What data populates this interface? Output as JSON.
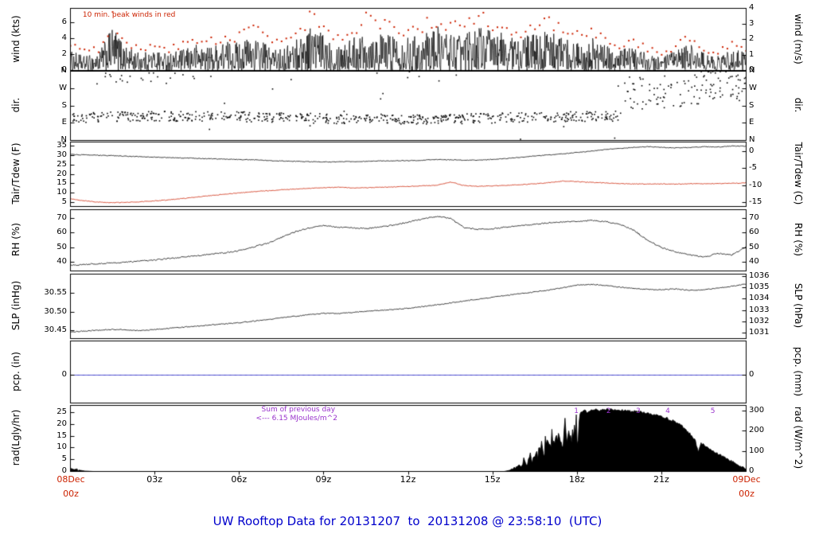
{
  "figure": {
    "title": "UW Rooftop Data for 20131207  to  20131208 @ 23:58:10  (UTC)",
    "title_color": "#0000cc",
    "date_color": "#cc2200",
    "x_ticks": [
      "03z",
      "06z",
      "09z",
      "12z",
      "15z",
      "18z",
      "21z"
    ],
    "x_start": {
      "line1": "08Dec",
      "line2": "00z"
    },
    "x_end": {
      "line1": "09Dec",
      "line2": "00z"
    }
  },
  "chart_data": [
    {
      "name": "wind",
      "type": "line",
      "ylabel_left": "wind (kts)",
      "ylabel_right": "wind (m/s)",
      "ylim": [
        0,
        7.8
      ],
      "right_conv": "ms",
      "yticks_left": [
        {
          "v": 0,
          "label": "0"
        },
        {
          "v": 2,
          "label": "2"
        },
        {
          "v": 4,
          "label": "4"
        },
        {
          "v": 6,
          "label": "6"
        }
      ],
      "yticks_right": [
        {
          "v": 0,
          "label": "0"
        },
        {
          "v": 1,
          "label": "1"
        },
        {
          "v": 2,
          "label": "2"
        },
        {
          "v": 3,
          "label": "3"
        },
        {
          "v": 4,
          "label": "4"
        }
      ],
      "annotations": [
        {
          "name": "peak-winds-note",
          "text": "10 min. peak winds in red",
          "color": "#cc2200",
          "x_hours": 0.45,
          "y_off": 4
        }
      ],
      "series": [
        {
          "name": "wind_speed_kts",
          "color": "#000000",
          "style": "noisy",
          "x_step": 0.5,
          "envelope_max": [
            2.5,
            1.8,
            2.2,
            5.5,
            3.0,
            2.2,
            2.6,
            2.2,
            2.6,
            3.4,
            3.0,
            3.8,
            3.6,
            4.4,
            3.2,
            2.6,
            4.0,
            5.8,
            4.6,
            3.6,
            4.2,
            5.4,
            4.6,
            5.0,
            4.2,
            4.6,
            5.6,
            5.0,
            4.6,
            5.8,
            5.2,
            4.6,
            4.2,
            4.6,
            5.0,
            4.2,
            3.6,
            4.2,
            3.2,
            2.6,
            3.0,
            2.2,
            1.6,
            2.6,
            3.6,
            2.2,
            1.8,
            2.8,
            2.2
          ]
        },
        {
          "name": "peak_wind_10min_kts",
          "color": "#cc2200",
          "style": "peak-dots",
          "interval_min": 10
        }
      ]
    },
    {
      "name": "direction",
      "type": "scatter",
      "ylabel_left": "dir.",
      "ylabel_right": "dir.",
      "ylim": [
        0,
        360
      ],
      "right_conv": "none",
      "yticks_left": [
        {
          "v": 0,
          "label": "N"
        },
        {
          "v": 90,
          "label": "E"
        },
        {
          "v": 180,
          "label": "S"
        },
        {
          "v": 270,
          "label": "W"
        },
        {
          "v": 360,
          "label": "N"
        }
      ],
      "yticks_right": [
        {
          "v": 0,
          "label": "N"
        },
        {
          "v": 90,
          "label": "E"
        },
        {
          "v": 180,
          "label": "S"
        },
        {
          "v": 270,
          "label": "W"
        },
        {
          "v": 360,
          "label": "N"
        }
      ],
      "annotations": [],
      "series": [
        {
          "name": "wind_direction_deg",
          "color": "#000000",
          "style": "scatter",
          "clusters": [
            {
              "t0": 0,
              "t1": 19.6,
              "mean_deg": 118,
              "spread_deg": 26,
              "per_hour": 30,
              "drift_deg": 8
            },
            {
              "t0": 1.2,
              "t1": 4.4,
              "mean_deg": 320,
              "spread_deg": 38,
              "per_hour": 7,
              "drift_deg": 0
            },
            {
              "t0": 19.6,
              "t1": 22.6,
              "mean_deg": 245,
              "spread_deg": 85,
              "per_hour": 22,
              "drift_deg": 0
            },
            {
              "t0": 22.4,
              "t1": 24,
              "mean_deg": 290,
              "spread_deg": 75,
              "per_hour": 30,
              "drift_deg": 0
            },
            {
              "t0": 0,
              "t1": 24,
              "mean_deg": 180,
              "spread_deg": 178,
              "per_hour": 1.3,
              "drift_deg": 0
            }
          ]
        }
      ]
    },
    {
      "name": "temperature",
      "type": "line",
      "ylabel_left": "Tair/Tdew (F)",
      "ylabel_right": "Tair/Tdew (C)",
      "ylim": [
        3,
        37
      ],
      "right_conv": "c",
      "yticks_left": [
        {
          "v": 5,
          "label": "5"
        },
        {
          "v": 10,
          "label": "10"
        },
        {
          "v": 15,
          "label": "15"
        },
        {
          "v": 20,
          "label": "20"
        },
        {
          "v": 25,
          "label": "25"
        },
        {
          "v": 30,
          "label": "30"
        },
        {
          "v": 35,
          "label": "35"
        }
      ],
      "yticks_right": [
        {
          "v": 0,
          "label": "0"
        },
        {
          "v": -5,
          "label": "-5"
        },
        {
          "v": -10,
          "label": "-10"
        },
        {
          "v": -15,
          "label": "-15"
        }
      ],
      "annotations": [],
      "series": [
        {
          "name": "Tair_F",
          "color": "#000000",
          "style": "line",
          "x0": 0,
          "x_step": 0.5,
          "jitter": 0.18,
          "y": [
            30.5,
            30.2,
            30.0,
            29.8,
            29.5,
            29.3,
            29.0,
            28.8,
            28.6,
            28.4,
            28.2,
            28.0,
            27.8,
            27.6,
            27.3,
            27.0,
            26.8,
            26.6,
            26.5,
            26.6,
            26.7,
            26.8,
            27.0,
            27.1,
            27.2,
            27.4,
            27.8,
            27.6,
            27.4,
            27.5,
            27.8,
            28.3,
            29.0,
            29.6,
            30.2,
            30.8,
            31.5,
            32.2,
            33.0,
            33.6,
            34.2,
            34.6,
            34.2,
            33.9,
            34.1,
            34.5,
            34.4,
            34.9,
            34.7
          ]
        },
        {
          "name": "Tdew_F",
          "color": "#cc2200",
          "style": "line",
          "x0": 0,
          "x_step": 0.5,
          "jitter": 0.18,
          "y": [
            7.0,
            6.0,
            5.3,
            5.0,
            5.2,
            5.5,
            6.0,
            6.5,
            7.2,
            8.0,
            8.8,
            9.5,
            10.2,
            10.8,
            11.3,
            11.8,
            12.2,
            12.6,
            12.9,
            13.2,
            12.8,
            12.9,
            13.1,
            13.4,
            13.6,
            13.9,
            14.1,
            15.9,
            14.0,
            13.6,
            13.9,
            14.2,
            14.5,
            15.0,
            15.6,
            16.4,
            16.1,
            15.7,
            15.4,
            15.1,
            14.9,
            14.8,
            14.9,
            14.8,
            15.0,
            15.0,
            15.1,
            15.2,
            15.4
          ]
        }
      ]
    },
    {
      "name": "relative_humidity",
      "type": "line",
      "ylabel_left": "RH (%)",
      "ylabel_right": "RH (%)",
      "ylim": [
        34,
        76
      ],
      "right_conv": "none",
      "yticks_left": [
        {
          "v": 40,
          "label": "40"
        },
        {
          "v": 50,
          "label": "50"
        },
        {
          "v": 60,
          "label": "60"
        },
        {
          "v": 70,
          "label": "70"
        }
      ],
      "yticks_right": [
        {
          "v": 40,
          "label": "40"
        },
        {
          "v": 50,
          "label": "50"
        },
        {
          "v": 60,
          "label": "60"
        },
        {
          "v": 70,
          "label": "70"
        }
      ],
      "annotations": [],
      "series": [
        {
          "name": "RH_percent",
          "color": "#000000",
          "style": "line",
          "x0": 0,
          "x_step": 0.5,
          "jitter": 0.45,
          "y": [
            38,
            38.5,
            39,
            39.5,
            40,
            40.8,
            41.5,
            42.5,
            43.5,
            44.5,
            45.5,
            46.5,
            48,
            50.5,
            53,
            57,
            61,
            63.5,
            65,
            64,
            63.5,
            63,
            64,
            65.5,
            67.5,
            69.5,
            71.5,
            70,
            63.5,
            62.5,
            63,
            64,
            65,
            66,
            67,
            67.5,
            68,
            68.5,
            68,
            66,
            62,
            55,
            50,
            47,
            45,
            43.5,
            46,
            45,
            50.5
          ]
        }
      ]
    },
    {
      "name": "sea_level_pressure",
      "type": "line",
      "ylabel_left": "SLP (inHg)",
      "ylabel_right": "SLP (hPa)",
      "ylim": [
        30.43,
        30.6
      ],
      "right_conv": "hpa",
      "yticks_left": [
        {
          "v": 30.45,
          "label": "30.45"
        },
        {
          "v": 30.5,
          "label": "30.50"
        },
        {
          "v": 30.55,
          "label": "30.55"
        }
      ],
      "yticks_right": [
        {
          "v": 1031,
          "label": "1031"
        },
        {
          "v": 1032,
          "label": "1032"
        },
        {
          "v": 1033,
          "label": "1033"
        },
        {
          "v": 1034,
          "label": "1034"
        },
        {
          "v": 1035,
          "label": "1035"
        },
        {
          "v": 1036,
          "label": "1036"
        }
      ],
      "annotations": [],
      "series": [
        {
          "name": "SLP_inHg",
          "color": "#000000",
          "style": "line",
          "x0": 0,
          "x_step": 0.5,
          "jitter": 0.0012,
          "y": [
            30.447,
            30.45,
            30.452,
            30.454,
            30.453,
            30.451,
            30.454,
            30.457,
            30.46,
            30.463,
            30.466,
            30.469,
            30.472,
            30.476,
            30.48,
            30.485,
            30.489,
            30.493,
            30.497,
            30.496,
            30.499,
            30.502,
            30.504,
            30.507,
            30.51,
            30.514,
            30.519,
            30.524,
            30.529,
            30.534,
            30.539,
            30.544,
            30.549,
            30.553,
            30.558,
            30.564,
            30.571,
            30.573,
            30.57,
            30.566,
            30.562,
            30.56,
            30.559,
            30.561,
            30.557,
            30.559,
            30.563,
            30.568,
            30.574
          ]
        }
      ]
    },
    {
      "name": "precipitation",
      "type": "line",
      "ylabel_left": "pcp. (in)",
      "ylabel_right": "pcp. (mm)",
      "ylim": [
        -0.45,
        0.55
      ],
      "right_conv": "none",
      "yticks_left": [
        {
          "v": 0,
          "label": "0"
        }
      ],
      "yticks_right": [
        {
          "v": 0,
          "label": "0"
        }
      ],
      "annotations": [],
      "series": [
        {
          "name": "pcp_in",
          "color": "#0000bb",
          "style": "line",
          "x0": 0,
          "x_step": 24,
          "jitter": 0,
          "y": [
            0,
            0
          ]
        }
      ]
    },
    {
      "name": "solar_radiation",
      "type": "area",
      "ylabel_left": "rad(Lgly/hr)",
      "ylabel_right": "rad (W/m^2)",
      "ylim": [
        0,
        28
      ],
      "right_conv": "wm2",
      "yticks_left": [
        {
          "v": 0,
          "label": "0"
        },
        {
          "v": 5,
          "label": "5"
        },
        {
          "v": 10,
          "label": "10"
        },
        {
          "v": 15,
          "label": "15"
        },
        {
          "v": 20,
          "label": "20"
        },
        {
          "v": 25,
          "label": "25"
        }
      ],
      "yticks_right": [
        {
          "v": 0,
          "label": "0"
        },
        {
          "v": 100,
          "label": "100"
        },
        {
          "v": 200,
          "label": "200"
        },
        {
          "v": 300,
          "label": "300"
        }
      ],
      "annotations": [
        {
          "name": "sum-previous-day-note",
          "text": "Sum of previous day",
          "color": "#9933cc",
          "x_hours": 6.8,
          "y_off": 1
        },
        {
          "name": "mjoules-note",
          "text": "<--- 6.15 MJoules/m^2",
          "color": "#9933cc",
          "x_hours": 6.6,
          "y_off": 12
        },
        {
          "name": "rad-marker-1",
          "text": "1",
          "color": "#9933cc",
          "x_hours": 17.9,
          "y_off": 3
        },
        {
          "name": "rad-marker-2",
          "text": "2",
          "color": "#9933cc",
          "x_hours": 19.05,
          "y_off": 3
        },
        {
          "name": "rad-marker-3",
          "text": "3",
          "color": "#9933cc",
          "x_hours": 20.1,
          "y_off": 3
        },
        {
          "name": "rad-marker-4",
          "text": "4",
          "color": "#9933cc",
          "x_hours": 21.15,
          "y_off": 3
        },
        {
          "name": "rad-marker-5",
          "text": "5",
          "color": "#9933cc",
          "x_hours": 22.75,
          "y_off": 3
        }
      ],
      "series": [
        {
          "name": "rad_lgly_hr",
          "color": "#000000",
          "style": "area",
          "fill": true,
          "clamp0": true,
          "jitter": 0.5,
          "jitter_floor": 0.5,
          "spike_zone": [
            15.9,
            18.1
          ],
          "x": [
            0,
            0.1,
            0.3,
            0.5,
            0.8,
            15.4,
            15.6,
            15.8,
            16.0,
            16.1,
            16.2,
            16.3,
            16.4,
            16.5,
            16.6,
            16.7,
            16.8,
            16.9,
            17.0,
            17.1,
            17.2,
            17.3,
            17.4,
            17.5,
            17.6,
            17.7,
            17.8,
            17.9,
            18.0,
            18.2,
            18.4,
            18.6,
            18.8,
            19.0,
            19.3,
            19.6,
            20.0,
            20.4,
            20.8,
            21.2,
            21.6,
            22.0,
            22.2,
            22.3,
            22.4,
            22.6,
            22.8,
            23.0,
            23.3,
            23.6,
            24.0
          ],
          "y": [
            1.8,
            1.2,
            0.6,
            0.2,
            0,
            0,
            0.5,
            1.5,
            3,
            6,
            4,
            9,
            5,
            12,
            8,
            15,
            10,
            18,
            14,
            22,
            12,
            25,
            16,
            21,
            26,
            18,
            24,
            27,
            23,
            26,
            25,
            26.5,
            26,
            26.5,
            26.3,
            26,
            25.5,
            24.8,
            23.8,
            22.5,
            20.5,
            16,
            13,
            8,
            12,
            10.5,
            9,
            7.5,
            5.5,
            3.5,
            1.2
          ]
        }
      ]
    }
  ]
}
